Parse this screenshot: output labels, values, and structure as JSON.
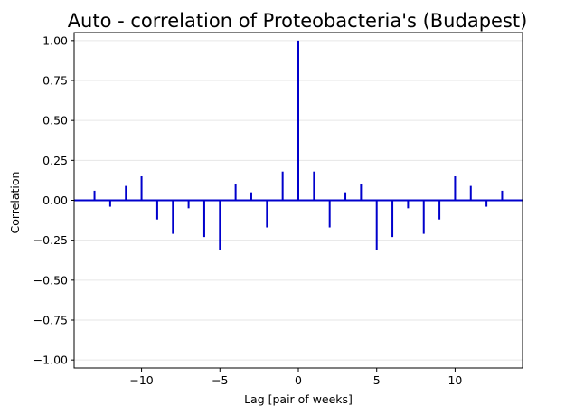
{
  "chart_data": {
    "type": "bar",
    "title": "Auto - correlation of Proteobacteria's (Budapest)",
    "xlabel": "Lag [pair of weeks]",
    "ylabel": "Correlation",
    "xlim": [
      -14.3,
      14.3
    ],
    "ylim": [
      -1.05,
      1.05
    ],
    "xticks": [
      -10,
      -5,
      0,
      5,
      10
    ],
    "xtick_labels": [
      "−10",
      "−5",
      "0",
      "5",
      "10"
    ],
    "yticks": [
      -1.0,
      -0.75,
      -0.5,
      -0.25,
      0.0,
      0.25,
      0.5,
      0.75,
      1.0
    ],
    "ytick_labels": [
      "−1.00",
      "−0.75",
      "−0.50",
      "−0.25",
      "0.00",
      "0.25",
      "0.50",
      "0.75",
      "1.00"
    ],
    "grid": "horizontal",
    "lags": [
      -13,
      -12,
      -11,
      -10,
      -9,
      -8,
      -7,
      -6,
      -5,
      -4,
      -3,
      -2,
      -1,
      0,
      1,
      2,
      3,
      4,
      5,
      6,
      7,
      8,
      9,
      10,
      11,
      12,
      13
    ],
    "values": [
      0.06,
      -0.04,
      0.09,
      0.15,
      -0.12,
      -0.21,
      -0.05,
      -0.23,
      -0.31,
      0.1,
      0.05,
      -0.17,
      0.18,
      1.0,
      0.18,
      -0.17,
      0.05,
      0.1,
      -0.31,
      -0.23,
      -0.05,
      -0.21,
      -0.12,
      0.15,
      0.09,
      -0.04,
      0.06
    ],
    "colors": {
      "stem": "#0000cc",
      "baseline": "#0000cc",
      "grid": "#e6e6e6",
      "axis": "#000000"
    }
  }
}
